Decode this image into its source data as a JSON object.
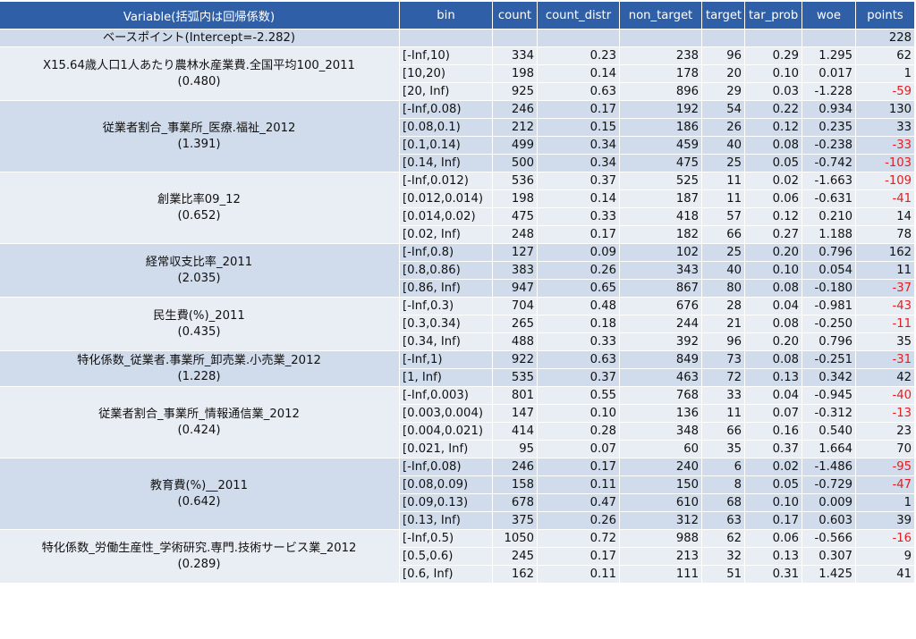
{
  "headers": [
    "Variable(括弧内は回帰係数)",
    "bin",
    "count",
    "count_distr",
    "non_target",
    "target",
    "tar_prob",
    "woe",
    "points"
  ],
  "base": {
    "label": "ベースポイント(Intercept=-2.282)",
    "points": "228"
  },
  "colors": {
    "header": "#2f5fa7",
    "light": "#e9edf4",
    "dark": "#d0dbeb",
    "negative": "#e02020"
  },
  "groups": [
    {
      "name": "X15.64歳人口1人あたり農林水産業費.全国平均100_2011",
      "coef": "(0.480)",
      "rows": [
        {
          "bin": "[-Inf,10)",
          "count": "334",
          "count_distr": "0.23",
          "non_target": "238",
          "target": "96",
          "tar_prob": "0.29",
          "woe": "1.295",
          "points": "62"
        },
        {
          "bin": "[10,20)",
          "count": "198",
          "count_distr": "0.14",
          "non_target": "178",
          "target": "20",
          "tar_prob": "0.10",
          "woe": "0.017",
          "points": "1"
        },
        {
          "bin": "[20, Inf)",
          "count": "925",
          "count_distr": "0.63",
          "non_target": "896",
          "target": "29",
          "tar_prob": "0.03",
          "woe": "-1.228",
          "points": "-59"
        }
      ]
    },
    {
      "name": "従業者割合_事業所_医療.福祉_2012",
      "coef": "(1.391)",
      "rows": [
        {
          "bin": "[-Inf,0.08)",
          "count": "246",
          "count_distr": "0.17",
          "non_target": "192",
          "target": "54",
          "tar_prob": "0.22",
          "woe": "0.934",
          "points": "130"
        },
        {
          "bin": "[0.08,0.1)",
          "count": "212",
          "count_distr": "0.15",
          "non_target": "186",
          "target": "26",
          "tar_prob": "0.12",
          "woe": "0.235",
          "points": "33"
        },
        {
          "bin": "[0.1,0.14)",
          "count": "499",
          "count_distr": "0.34",
          "non_target": "459",
          "target": "40",
          "tar_prob": "0.08",
          "woe": "-0.238",
          "points": "-33"
        },
        {
          "bin": "[0.14, Inf)",
          "count": "500",
          "count_distr": "0.34",
          "non_target": "475",
          "target": "25",
          "tar_prob": "0.05",
          "woe": "-0.742",
          "points": "-103"
        }
      ]
    },
    {
      "name": "創業比率09_12",
      "coef": "(0.652)",
      "rows": [
        {
          "bin": "[-Inf,0.012)",
          "count": "536",
          "count_distr": "0.37",
          "non_target": "525",
          "target": "11",
          "tar_prob": "0.02",
          "woe": "-1.663",
          "points": "-109"
        },
        {
          "bin": "[0.012,0.014)",
          "count": "198",
          "count_distr": "0.14",
          "non_target": "187",
          "target": "11",
          "tar_prob": "0.06",
          "woe": "-0.631",
          "points": "-41"
        },
        {
          "bin": "[0.014,0.02)",
          "count": "475",
          "count_distr": "0.33",
          "non_target": "418",
          "target": "57",
          "tar_prob": "0.12",
          "woe": "0.210",
          "points": "14"
        },
        {
          "bin": "[0.02, Inf)",
          "count": "248",
          "count_distr": "0.17",
          "non_target": "182",
          "target": "66",
          "tar_prob": "0.27",
          "woe": "1.188",
          "points": "78"
        }
      ]
    },
    {
      "name": "経常収支比率_2011",
      "coef": "(2.035)",
      "rows": [
        {
          "bin": "[-Inf,0.8)",
          "count": "127",
          "count_distr": "0.09",
          "non_target": "102",
          "target": "25",
          "tar_prob": "0.20",
          "woe": "0.796",
          "points": "162"
        },
        {
          "bin": "[0.8,0.86)",
          "count": "383",
          "count_distr": "0.26",
          "non_target": "343",
          "target": "40",
          "tar_prob": "0.10",
          "woe": "0.054",
          "points": "11"
        },
        {
          "bin": "[0.86, Inf)",
          "count": "947",
          "count_distr": "0.65",
          "non_target": "867",
          "target": "80",
          "tar_prob": "0.08",
          "woe": "-0.180",
          "points": "-37"
        }
      ]
    },
    {
      "name": "民生費(%)_2011",
      "coef": "(0.435)",
      "rows": [
        {
          "bin": "[-Inf,0.3)",
          "count": "704",
          "count_distr": "0.48",
          "non_target": "676",
          "target": "28",
          "tar_prob": "0.04",
          "woe": "-0.981",
          "points": "-43"
        },
        {
          "bin": "[0.3,0.34)",
          "count": "265",
          "count_distr": "0.18",
          "non_target": "244",
          "target": "21",
          "tar_prob": "0.08",
          "woe": "-0.250",
          "points": "-11"
        },
        {
          "bin": "[0.34, Inf)",
          "count": "488",
          "count_distr": "0.33",
          "non_target": "392",
          "target": "96",
          "tar_prob": "0.20",
          "woe": "0.796",
          "points": "35"
        }
      ]
    },
    {
      "name": "特化係数_従業者.事業所_卸売業.小売業_2012",
      "coef": "(1.228)",
      "rows": [
        {
          "bin": "[-Inf,1)",
          "count": "922",
          "count_distr": "0.63",
          "non_target": "849",
          "target": "73",
          "tar_prob": "0.08",
          "woe": "-0.251",
          "points": "-31"
        },
        {
          "bin": "[1, Inf)",
          "count": "535",
          "count_distr": "0.37",
          "non_target": "463",
          "target": "72",
          "tar_prob": "0.13",
          "woe": "0.342",
          "points": "42"
        }
      ]
    },
    {
      "name": "従業者割合_事業所_情報通信業_2012",
      "coef": "(0.424)",
      "rows": [
        {
          "bin": "[-Inf,0.003)",
          "count": "801",
          "count_distr": "0.55",
          "non_target": "768",
          "target": "33",
          "tar_prob": "0.04",
          "woe": "-0.945",
          "points": "-40"
        },
        {
          "bin": "[0.003,0.004)",
          "count": "147",
          "count_distr": "0.10",
          "non_target": "136",
          "target": "11",
          "tar_prob": "0.07",
          "woe": "-0.312",
          "points": "-13",
          "wrap": true
        },
        {
          "bin": "[0.004,0.021)",
          "count": "414",
          "count_distr": "0.28",
          "non_target": "348",
          "target": "66",
          "tar_prob": "0.16",
          "woe": "0.540",
          "points": "23"
        },
        {
          "bin": "[0.021, Inf)",
          "count": "95",
          "count_distr": "0.07",
          "non_target": "60",
          "target": "35",
          "tar_prob": "0.37",
          "woe": "1.664",
          "points": "70"
        }
      ]
    },
    {
      "name": "教育費(%)__2011",
      "coef": "(0.642)",
      "rows": [
        {
          "bin": "[-Inf,0.08)",
          "count": "246",
          "count_distr": "0.17",
          "non_target": "240",
          "target": "6",
          "tar_prob": "0.02",
          "woe": "-1.486",
          "points": "-95"
        },
        {
          "bin": "[0.08,0.09)",
          "count": "158",
          "count_distr": "0.11",
          "non_target": "150",
          "target": "8",
          "tar_prob": "0.05",
          "woe": "-0.729",
          "points": "-47"
        },
        {
          "bin": "[0.09,0.13)",
          "count": "678",
          "count_distr": "0.47",
          "non_target": "610",
          "target": "68",
          "tar_prob": "0.10",
          "woe": "0.009",
          "points": "1"
        },
        {
          "bin": "[0.13, Inf)",
          "count": "375",
          "count_distr": "0.26",
          "non_target": "312",
          "target": "63",
          "tar_prob": "0.17",
          "woe": "0.603",
          "points": "39"
        }
      ]
    },
    {
      "name": "特化係数_労働生産性_学術研究.専門.技術サービス業_2012",
      "coef": "(0.289)",
      "rows": [
        {
          "bin": "[-Inf,0.5)",
          "count": "1050",
          "count_distr": "0.72",
          "non_target": "988",
          "target": "62",
          "tar_prob": "0.06",
          "woe": "-0.566",
          "points": "-16"
        },
        {
          "bin": "[0.5,0.6)",
          "count": "245",
          "count_distr": "0.17",
          "non_target": "213",
          "target": "32",
          "tar_prob": "0.13",
          "woe": "0.307",
          "points": "9"
        },
        {
          "bin": "[0.6, Inf)",
          "count": "162",
          "count_distr": "0.11",
          "non_target": "111",
          "target": "51",
          "tar_prob": "0.31",
          "woe": "1.425",
          "points": "41"
        }
      ]
    }
  ]
}
